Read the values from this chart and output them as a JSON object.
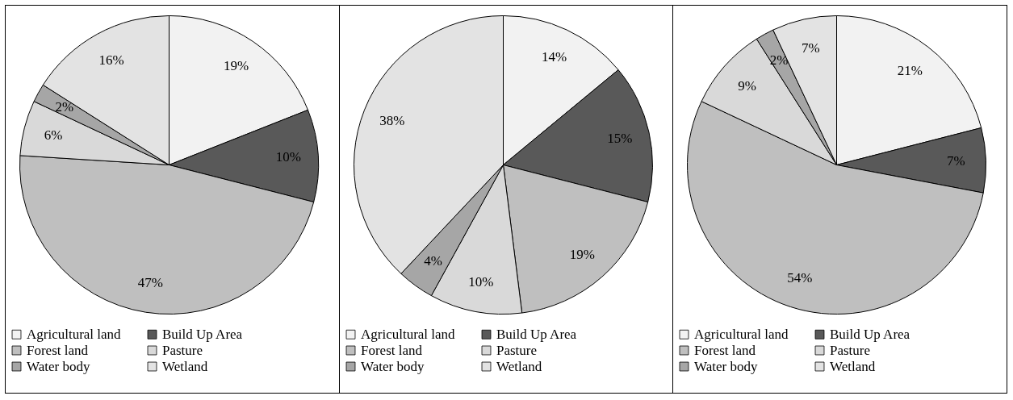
{
  "chart_data": [
    {
      "type": "pie",
      "categories": [
        "Agricultural land",
        "Build Up Area",
        "Forest land",
        "Pasture",
        "Water body",
        "Wetland"
      ],
      "values": [
        19,
        10,
        47,
        6,
        2,
        16
      ],
      "value_labels": [
        "19%",
        "10%",
        "47%",
        "6%",
        "2%",
        "16%"
      ],
      "colors": [
        "#f2f2f2",
        "#595959",
        "#bfbfbf",
        "#d9d9d9",
        "#a6a6a6",
        "#e3e3e3"
      ],
      "legend": "bottom"
    },
    {
      "type": "pie",
      "categories": [
        "Agricultural land",
        "Build Up Area",
        "Forest land",
        "Pasture",
        "Water body",
        "Wetland"
      ],
      "values": [
        14,
        15,
        19,
        10,
        4,
        38
      ],
      "value_labels": [
        "14%",
        "15%",
        "19%",
        "10%",
        "4%",
        "38%"
      ],
      "colors": [
        "#f2f2f2",
        "#595959",
        "#bfbfbf",
        "#d9d9d9",
        "#a6a6a6",
        "#e3e3e3"
      ],
      "legend": "bottom"
    },
    {
      "type": "pie",
      "categories": [
        "Agricultural land",
        "Build Up Area",
        "Forest land",
        "Pasture",
        "Water body",
        "Wetland"
      ],
      "values": [
        21,
        7,
        54,
        9,
        2,
        7
      ],
      "value_labels": [
        "21%",
        "7%",
        "54%",
        "9%",
        "2%",
        "7%"
      ],
      "colors": [
        "#f2f2f2",
        "#595959",
        "#bfbfbf",
        "#d9d9d9",
        "#a6a6a6",
        "#e3e3e3"
      ],
      "legend": "bottom"
    }
  ]
}
